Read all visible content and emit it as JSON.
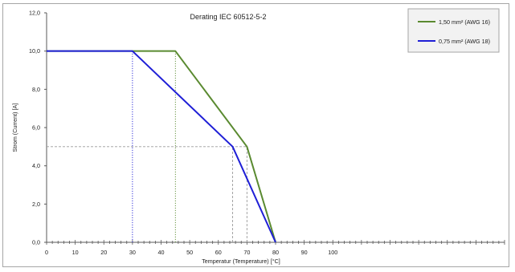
{
  "chart_data": {
    "type": "line",
    "title": "Derating IEC 60512-5-2",
    "xlabel": "Temperatur (Temperature) [°C]",
    "ylabel": "Strom (Current) [A]",
    "xlim": [
      0,
      160
    ],
    "ylim": [
      0,
      12
    ],
    "x_ticks": [
      0,
      10,
      20,
      30,
      40,
      50,
      60,
      70,
      80,
      90,
      100
    ],
    "y_ticks": [
      "0,0",
      "2,0",
      "4,0",
      "6,0",
      "8,0",
      "10,0",
      "12,0"
    ],
    "legend_position": "top-right",
    "series": [
      {
        "name": "1,50 mm² (AWG 16)",
        "color": "#5a8a30",
        "x": [
          0,
          30,
          45,
          70,
          80
        ],
        "y": [
          10,
          10,
          10,
          5,
          0
        ]
      },
      {
        "name": "0,75 mm² (AWG 18)",
        "color": "#1f1fd6",
        "x": [
          0,
          30,
          65,
          80
        ],
        "y": [
          10,
          10,
          5,
          0
        ]
      }
    ],
    "reference_lines": [
      {
        "x": 30,
        "y_from": 0,
        "y_to": 10,
        "style": "dotted",
        "color": "#1f1fd6"
      },
      {
        "x": 45,
        "y_from": 0,
        "y_to": 10,
        "style": "dotted",
        "color": "#5a8a30"
      },
      {
        "x": 65,
        "y_from": 0,
        "y_to": 5,
        "style": "dashed",
        "color": "#9a9a9a"
      },
      {
        "x": 70,
        "y_from": 0,
        "y_to": 5,
        "style": "dashed",
        "color": "#9a9a9a"
      },
      {
        "y": 5,
        "x_from": 0,
        "x_to": 70,
        "style": "dashed",
        "color": "#9a9a9a"
      }
    ]
  }
}
